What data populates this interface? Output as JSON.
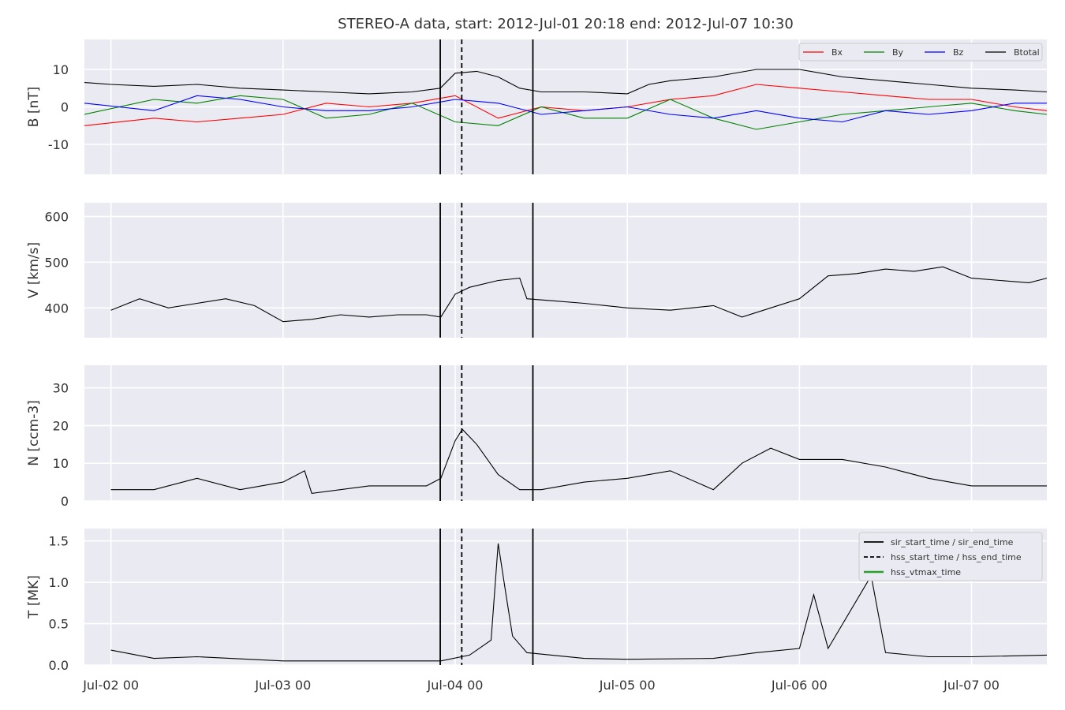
{
  "chart_data": {
    "type": "line",
    "title": "STEREO-A data, start: 2012-Jul-01 20:18  end: 2012-Jul-07 10:30",
    "x_range": [
      "2012-07-01 20:18",
      "2012-07-07 10:30"
    ],
    "x_ticks": [
      {
        "label": "Jul-02 00",
        "t": "2012-07-02 00:00"
      },
      {
        "label": "Jul-03 00",
        "t": "2012-07-03 00:00"
      },
      {
        "label": "Jul-04 00",
        "t": "2012-07-04 00:00"
      },
      {
        "label": "Jul-05 00",
        "t": "2012-07-05 00:00"
      },
      {
        "label": "Jul-06 00",
        "t": "2012-07-06 00:00"
      },
      {
        "label": "Jul-07 00",
        "t": "2012-07-07 00:00"
      }
    ],
    "grid": true,
    "event_markers": {
      "sir_start_time": "2012-07-03 21:55",
      "hss_start_time": "2012-07-04 00:55",
      "sir_end_time": "2012-07-04 10:50"
    },
    "panels": [
      {
        "ylabel": "B [nT]",
        "ylim": [
          -18,
          18
        ],
        "yticks": [
          -10,
          0,
          10
        ],
        "legend_placement": "top-right",
        "series": [
          {
            "name": "Bx",
            "color": "#ff0000",
            "points": [
              [
                "2012-07-01 20:18",
                -5
              ],
              [
                "2012-07-02 06:00",
                -3
              ],
              [
                "2012-07-02 12:00",
                -4
              ],
              [
                "2012-07-02 18:00",
                -3
              ],
              [
                "2012-07-03 00:00",
                -2
              ],
              [
                "2012-07-03 06:00",
                1
              ],
              [
                "2012-07-03 12:00",
                0
              ],
              [
                "2012-07-03 18:00",
                1
              ],
              [
                "2012-07-04 00:00",
                3
              ],
              [
                "2012-07-04 06:00",
                -3
              ],
              [
                "2012-07-04 12:00",
                0
              ],
              [
                "2012-07-04 18:00",
                -1
              ],
              [
                "2012-07-05 00:00",
                0
              ],
              [
                "2012-07-05 06:00",
                2
              ],
              [
                "2012-07-05 12:00",
                3
              ],
              [
                "2012-07-05 18:00",
                6
              ],
              [
                "2012-07-06 00:00",
                5
              ],
              [
                "2012-07-06 06:00",
                4
              ],
              [
                "2012-07-06 12:00",
                3
              ],
              [
                "2012-07-06 18:00",
                2
              ],
              [
                "2012-07-07 00:00",
                2
              ],
              [
                "2012-07-07 06:00",
                0
              ],
              [
                "2012-07-07 10:30",
                -1
              ]
            ]
          },
          {
            "name": "By",
            "color": "#008000",
            "points": [
              [
                "2012-07-01 20:18",
                -2
              ],
              [
                "2012-07-02 06:00",
                2
              ],
              [
                "2012-07-02 12:00",
                1
              ],
              [
                "2012-07-02 18:00",
                3
              ],
              [
                "2012-07-03 00:00",
                2
              ],
              [
                "2012-07-03 06:00",
                -3
              ],
              [
                "2012-07-03 12:00",
                -2
              ],
              [
                "2012-07-03 18:00",
                1
              ],
              [
                "2012-07-04 00:00",
                -4
              ],
              [
                "2012-07-04 06:00",
                -5
              ],
              [
                "2012-07-04 12:00",
                0
              ],
              [
                "2012-07-04 18:00",
                -3
              ],
              [
                "2012-07-05 00:00",
                -3
              ],
              [
                "2012-07-05 06:00",
                2
              ],
              [
                "2012-07-05 12:00",
                -3
              ],
              [
                "2012-07-05 18:00",
                -6
              ],
              [
                "2012-07-06 00:00",
                -4
              ],
              [
                "2012-07-06 06:00",
                -2
              ],
              [
                "2012-07-06 12:00",
                -1
              ],
              [
                "2012-07-06 18:00",
                0
              ],
              [
                "2012-07-07 00:00",
                1
              ],
              [
                "2012-07-07 06:00",
                -1
              ],
              [
                "2012-07-07 10:30",
                -2
              ]
            ]
          },
          {
            "name": "Bz",
            "color": "#0000ff",
            "points": [
              [
                "2012-07-01 20:18",
                1
              ],
              [
                "2012-07-02 06:00",
                -1
              ],
              [
                "2012-07-02 12:00",
                3
              ],
              [
                "2012-07-02 18:00",
                2
              ],
              [
                "2012-07-03 00:00",
                0
              ],
              [
                "2012-07-03 06:00",
                -1
              ],
              [
                "2012-07-03 12:00",
                -1
              ],
              [
                "2012-07-03 18:00",
                0
              ],
              [
                "2012-07-04 00:00",
                2
              ],
              [
                "2012-07-04 06:00",
                1
              ],
              [
                "2012-07-04 12:00",
                -2
              ],
              [
                "2012-07-04 18:00",
                -1
              ],
              [
                "2012-07-05 00:00",
                0
              ],
              [
                "2012-07-05 06:00",
                -2
              ],
              [
                "2012-07-05 12:00",
                -3
              ],
              [
                "2012-07-05 18:00",
                -1
              ],
              [
                "2012-07-06 00:00",
                -3
              ],
              [
                "2012-07-06 06:00",
                -4
              ],
              [
                "2012-07-06 12:00",
                -1
              ],
              [
                "2012-07-06 18:00",
                -2
              ],
              [
                "2012-07-07 00:00",
                -1
              ],
              [
                "2012-07-07 06:00",
                1
              ],
              [
                "2012-07-07 10:30",
                1
              ]
            ]
          },
          {
            "name": "Btotal",
            "color": "#000000",
            "points": [
              [
                "2012-07-01 20:18",
                6.5
              ],
              [
                "2012-07-02 00:00",
                6
              ],
              [
                "2012-07-02 06:00",
                5.5
              ],
              [
                "2012-07-02 12:00",
                6
              ],
              [
                "2012-07-02 18:00",
                5
              ],
              [
                "2012-07-03 00:00",
                4.5
              ],
              [
                "2012-07-03 06:00",
                4
              ],
              [
                "2012-07-03 12:00",
                3.5
              ],
              [
                "2012-07-03 18:00",
                4
              ],
              [
                "2012-07-03 21:55",
                5
              ],
              [
                "2012-07-04 00:00",
                9
              ],
              [
                "2012-07-04 03:00",
                9.5
              ],
              [
                "2012-07-04 06:00",
                8
              ],
              [
                "2012-07-04 09:00",
                5
              ],
              [
                "2012-07-04 12:00",
                4
              ],
              [
                "2012-07-04 18:00",
                4
              ],
              [
                "2012-07-05 00:00",
                3.5
              ],
              [
                "2012-07-05 03:00",
                6
              ],
              [
                "2012-07-05 06:00",
                7
              ],
              [
                "2012-07-05 12:00",
                8
              ],
              [
                "2012-07-05 18:00",
                10
              ],
              [
                "2012-07-06 00:00",
                10
              ],
              [
                "2012-07-06 06:00",
                8
              ],
              [
                "2012-07-06 12:00",
                7
              ],
              [
                "2012-07-06 18:00",
                6
              ],
              [
                "2012-07-07 00:00",
                5
              ],
              [
                "2012-07-07 06:00",
                4.5
              ],
              [
                "2012-07-07 10:30",
                4
              ]
            ]
          }
        ]
      },
      {
        "ylabel": "V [km/s]",
        "ylim": [
          335,
          630
        ],
        "yticks": [
          400,
          500,
          600
        ],
        "series": [
          {
            "name": "",
            "color": "#000000",
            "points": [
              [
                "2012-07-02 00:00",
                395
              ],
              [
                "2012-07-02 04:00",
                420
              ],
              [
                "2012-07-02 08:00",
                400
              ],
              [
                "2012-07-02 12:00",
                410
              ],
              [
                "2012-07-02 16:00",
                420
              ],
              [
                "2012-07-02 20:00",
                405
              ],
              [
                "2012-07-03 00:00",
                370
              ],
              [
                "2012-07-03 04:00",
                375
              ],
              [
                "2012-07-03 08:00",
                385
              ],
              [
                "2012-07-03 12:00",
                380
              ],
              [
                "2012-07-03 16:00",
                385
              ],
              [
                "2012-07-03 20:00",
                385
              ],
              [
                "2012-07-03 22:00",
                380
              ],
              [
                "2012-07-04 00:00",
                430
              ],
              [
                "2012-07-04 02:00",
                445
              ],
              [
                "2012-07-04 06:00",
                460
              ],
              [
                "2012-07-04 09:00",
                465
              ],
              [
                "2012-07-04 10:00",
                420
              ],
              [
                "2012-07-04 14:00",
                415
              ],
              [
                "2012-07-04 18:00",
                410
              ],
              [
                "2012-07-05 00:00",
                400
              ],
              [
                "2012-07-05 06:00",
                395
              ],
              [
                "2012-07-05 12:00",
                405
              ],
              [
                "2012-07-05 16:00",
                380
              ],
              [
                "2012-07-05 20:00",
                400
              ],
              [
                "2012-07-06 00:00",
                420
              ],
              [
                "2012-07-06 04:00",
                470
              ],
              [
                "2012-07-06 08:00",
                475
              ],
              [
                "2012-07-06 12:00",
                485
              ],
              [
                "2012-07-06 16:00",
                480
              ],
              [
                "2012-07-06 20:00",
                490
              ],
              [
                "2012-07-07 00:00",
                465
              ],
              [
                "2012-07-07 04:00",
                460
              ],
              [
                "2012-07-07 08:00",
                455
              ],
              [
                "2012-07-07 10:30",
                465
              ]
            ]
          }
        ]
      },
      {
        "ylabel": "N [ccm-3]",
        "ylim": [
          0,
          36
        ],
        "yticks": [
          0,
          10,
          20,
          30
        ],
        "series": [
          {
            "name": "",
            "color": "#000000",
            "points": [
              [
                "2012-07-02 00:00",
                3
              ],
              [
                "2012-07-02 06:00",
                3
              ],
              [
                "2012-07-02 12:00",
                6
              ],
              [
                "2012-07-02 18:00",
                3
              ],
              [
                "2012-07-03 00:00",
                5
              ],
              [
                "2012-07-03 03:00",
                8
              ],
              [
                "2012-07-03 04:00",
                2
              ],
              [
                "2012-07-03 12:00",
                4
              ],
              [
                "2012-07-03 20:00",
                4
              ],
              [
                "2012-07-03 22:00",
                6
              ],
              [
                "2012-07-04 00:00",
                16
              ],
              [
                "2012-07-04 01:00",
                19
              ],
              [
                "2012-07-04 03:00",
                15
              ],
              [
                "2012-07-04 06:00",
                7
              ],
              [
                "2012-07-04 09:00",
                3
              ],
              [
                "2012-07-04 12:00",
                3
              ],
              [
                "2012-07-04 18:00",
                5
              ],
              [
                "2012-07-05 00:00",
                6
              ],
              [
                "2012-07-05 06:00",
                8
              ],
              [
                "2012-07-05 12:00",
                3
              ],
              [
                "2012-07-05 16:00",
                10
              ],
              [
                "2012-07-05 20:00",
                14
              ],
              [
                "2012-07-06 00:00",
                11
              ],
              [
                "2012-07-06 06:00",
                11
              ],
              [
                "2012-07-06 12:00",
                9
              ],
              [
                "2012-07-06 18:00",
                6
              ],
              [
                "2012-07-07 00:00",
                4
              ],
              [
                "2012-07-07 06:00",
                4
              ],
              [
                "2012-07-07 10:30",
                4
              ]
            ]
          }
        ]
      },
      {
        "ylabel": "T [MK]",
        "ylim": [
          0,
          1.65
        ],
        "yticks": [
          0.0,
          0.5,
          1.0,
          1.5
        ],
        "legend_placement": "top-right",
        "legend": [
          {
            "label": "sir_start_time / sir_end_time",
            "color": "#000000",
            "style": "solid"
          },
          {
            "label": "hss_start_time / hss_end_time",
            "color": "#000000",
            "style": "dashed"
          },
          {
            "label": "hss_vtmax_time",
            "color": "#2ca02c",
            "style": "solid"
          }
        ],
        "series": [
          {
            "name": "",
            "color": "#000000",
            "points": [
              [
                "2012-07-02 00:00",
                0.18
              ],
              [
                "2012-07-02 06:00",
                0.08
              ],
              [
                "2012-07-02 12:00",
                0.1
              ],
              [
                "2012-07-03 00:00",
                0.05
              ],
              [
                "2012-07-03 12:00",
                0.05
              ],
              [
                "2012-07-03 22:00",
                0.05
              ],
              [
                "2012-07-04 02:00",
                0.12
              ],
              [
                "2012-07-04 05:00",
                0.3
              ],
              [
                "2012-07-04 06:00",
                1.47
              ],
              [
                "2012-07-04 07:00",
                0.9
              ],
              [
                "2012-07-04 08:00",
                0.35
              ],
              [
                "2012-07-04 10:00",
                0.15
              ],
              [
                "2012-07-04 18:00",
                0.08
              ],
              [
                "2012-07-05 00:00",
                0.07
              ],
              [
                "2012-07-05 12:00",
                0.08
              ],
              [
                "2012-07-05 18:00",
                0.15
              ],
              [
                "2012-07-06 00:00",
                0.2
              ],
              [
                "2012-07-06 02:00",
                0.85
              ],
              [
                "2012-07-06 04:00",
                0.2
              ],
              [
                "2012-07-06 10:00",
                1.08
              ],
              [
                "2012-07-06 12:00",
                0.15
              ],
              [
                "2012-07-06 18:00",
                0.1
              ],
              [
                "2012-07-07 00:00",
                0.1
              ],
              [
                "2012-07-07 10:30",
                0.12
              ]
            ]
          }
        ]
      }
    ]
  }
}
